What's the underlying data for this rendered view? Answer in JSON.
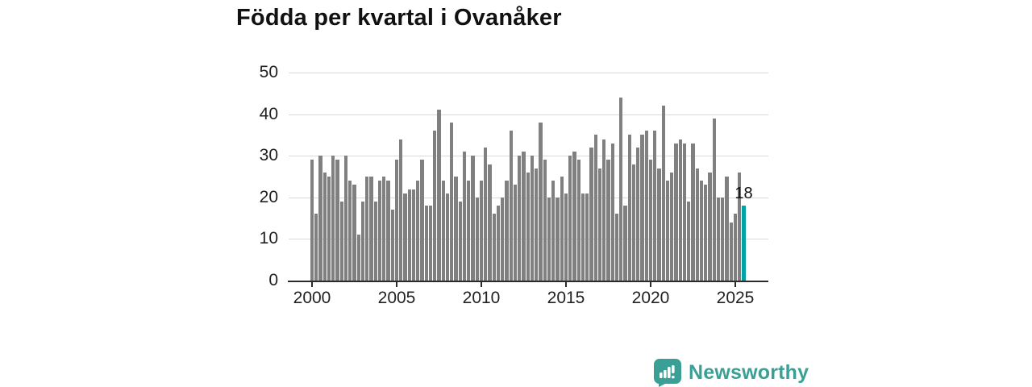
{
  "title": "Födda per kvartal i Ovanåker",
  "annotation": {
    "value_label": "18"
  },
  "branding": {
    "name": "Newsworthy",
    "icon": "newsworthy-speech-bubble-bar-chart-icon"
  },
  "colors": {
    "bar": "#808080",
    "highlight_bar": "#00a3a3",
    "gridline": "#d9d9d9",
    "axis": "#2b2b2b",
    "brand_teal": "#3aa096",
    "text": "#222222"
  },
  "chart_data": {
    "type": "bar",
    "title": "Födda per kvartal i Ovanåker",
    "unit": "births per quarter",
    "start_period": "2000Q1",
    "end_period": "2025Q3",
    "x_tick_labels": [
      "2000",
      "2005",
      "2010",
      "2015",
      "2020",
      "2025"
    ],
    "y_tick_values": [
      0,
      10,
      20,
      30,
      40,
      50
    ],
    "ylim": [
      0,
      50
    ],
    "grid": true,
    "legend": false,
    "highlight_last": true,
    "highlight_value": 18,
    "values": [
      29,
      16,
      30,
      26,
      25,
      30,
      29,
      19,
      30,
      24,
      23,
      11,
      19,
      25,
      25,
      19,
      24,
      25,
      24,
      17,
      29,
      34,
      21,
      22,
      22,
      24,
      29,
      18,
      18,
      36,
      41,
      24,
      21,
      38,
      25,
      19,
      31,
      24,
      30,
      20,
      24,
      32,
      28,
      16,
      18,
      20,
      24,
      36,
      23,
      30,
      31,
      26,
      30,
      27,
      38,
      29,
      20,
      24,
      20,
      25,
      21,
      30,
      31,
      29,
      21,
      21,
      32,
      35,
      27,
      34,
      29,
      33,
      16,
      44,
      18,
      35,
      28,
      32,
      35,
      36,
      29,
      36,
      27,
      42,
      24,
      26,
      33,
      34,
      33,
      19,
      33,
      27,
      24,
      23,
      26,
      39,
      20,
      20,
      25,
      14,
      16,
      26,
      18
    ]
  }
}
